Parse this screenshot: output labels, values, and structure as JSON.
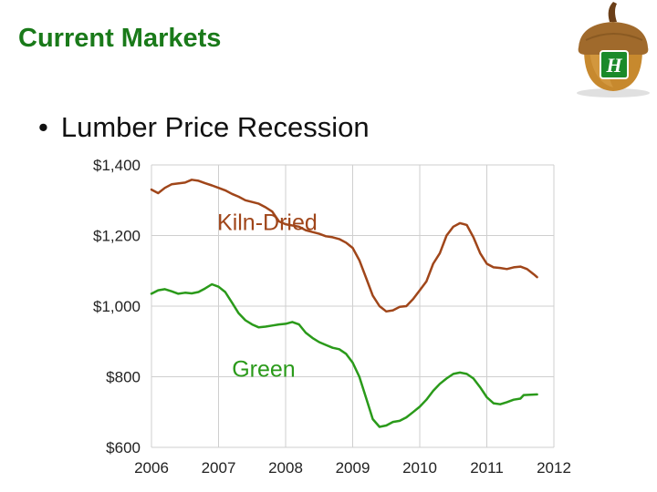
{
  "slide": {
    "title": "Current Markets",
    "bullet": "Lumber Price Recession"
  },
  "logo": {
    "icon": "acorn-logo-icon",
    "letter": "H"
  },
  "colors": {
    "title": "#1a7a1a",
    "kiln_dried": "#a0461a",
    "green": "#2a9a1a",
    "grid": "#cfcfcf"
  },
  "chart_data": {
    "type": "line",
    "title": "",
    "xlabel": "",
    "ylabel": "",
    "xlim": [
      2006,
      2012
    ],
    "ylim": [
      600,
      1400
    ],
    "x_ticks": [
      2006,
      2007,
      2008,
      2009,
      2010,
      2011,
      2012
    ],
    "x_tick_labels": [
      "2006",
      "2007",
      "2008",
      "2009",
      "2010",
      "2011",
      "2012"
    ],
    "y_ticks": [
      600,
      800,
      1000,
      1200,
      1400
    ],
    "y_tick_labels": [
      "$600",
      "$800",
      "$1,000",
      "$1,200",
      "$1,400"
    ],
    "grid": true,
    "legend": "none (series labeled directly on plot)",
    "series": [
      {
        "name": "Kiln-Dried",
        "color": "#a0461a",
        "label_at": [
          2006.98,
          1215
        ],
        "points": [
          [
            2006.0,
            1330
          ],
          [
            2006.1,
            1320
          ],
          [
            2006.2,
            1335
          ],
          [
            2006.3,
            1345
          ],
          [
            2006.5,
            1350
          ],
          [
            2006.6,
            1358
          ],
          [
            2006.7,
            1355
          ],
          [
            2006.8,
            1348
          ],
          [
            2006.9,
            1342
          ],
          [
            2007.0,
            1335
          ],
          [
            2007.1,
            1328
          ],
          [
            2007.2,
            1318
          ],
          [
            2007.3,
            1310
          ],
          [
            2007.4,
            1300
          ],
          [
            2007.5,
            1295
          ],
          [
            2007.6,
            1290
          ],
          [
            2007.7,
            1280
          ],
          [
            2007.8,
            1268
          ],
          [
            2007.9,
            1240
          ],
          [
            2008.0,
            1232
          ],
          [
            2008.2,
            1225
          ],
          [
            2008.3,
            1215
          ],
          [
            2008.5,
            1205
          ],
          [
            2008.6,
            1198
          ],
          [
            2008.7,
            1195
          ],
          [
            2008.8,
            1190
          ],
          [
            2008.9,
            1180
          ],
          [
            2009.0,
            1165
          ],
          [
            2009.1,
            1130
          ],
          [
            2009.2,
            1080
          ],
          [
            2009.3,
            1030
          ],
          [
            2009.4,
            1000
          ],
          [
            2009.5,
            985
          ],
          [
            2009.6,
            988
          ],
          [
            2009.7,
            998
          ],
          [
            2009.8,
            1000
          ],
          [
            2009.9,
            1020
          ],
          [
            2010.0,
            1045
          ],
          [
            2010.1,
            1070
          ],
          [
            2010.2,
            1120
          ],
          [
            2010.3,
            1150
          ],
          [
            2010.4,
            1200
          ],
          [
            2010.5,
            1225
          ],
          [
            2010.6,
            1235
          ],
          [
            2010.7,
            1230
          ],
          [
            2010.8,
            1195
          ],
          [
            2010.9,
            1150
          ],
          [
            2011.0,
            1120
          ],
          [
            2011.1,
            1110
          ],
          [
            2011.2,
            1108
          ],
          [
            2011.3,
            1105
          ],
          [
            2011.4,
            1110
          ],
          [
            2011.5,
            1112
          ],
          [
            2011.6,
            1105
          ],
          [
            2011.7,
            1090
          ],
          [
            2011.75,
            1082
          ]
        ]
      },
      {
        "name": "Green",
        "color": "#2a9a1a",
        "label_at": [
          2007.2,
          800
        ],
        "points": [
          [
            2006.0,
            1035
          ],
          [
            2006.1,
            1045
          ],
          [
            2006.2,
            1048
          ],
          [
            2006.3,
            1042
          ],
          [
            2006.4,
            1035
          ],
          [
            2006.5,
            1038
          ],
          [
            2006.6,
            1036
          ],
          [
            2006.7,
            1040
          ],
          [
            2006.8,
            1050
          ],
          [
            2006.9,
            1062
          ],
          [
            2007.0,
            1055
          ],
          [
            2007.1,
            1040
          ],
          [
            2007.2,
            1010
          ],
          [
            2007.3,
            980
          ],
          [
            2007.4,
            960
          ],
          [
            2007.5,
            948
          ],
          [
            2007.6,
            940
          ],
          [
            2007.7,
            942
          ],
          [
            2007.8,
            945
          ],
          [
            2007.9,
            948
          ],
          [
            2008.0,
            950
          ],
          [
            2008.1,
            955
          ],
          [
            2008.2,
            948
          ],
          [
            2008.3,
            925
          ],
          [
            2008.4,
            910
          ],
          [
            2008.5,
            898
          ],
          [
            2008.6,
            890
          ],
          [
            2008.7,
            882
          ],
          [
            2008.8,
            878
          ],
          [
            2008.9,
            865
          ],
          [
            2009.0,
            840
          ],
          [
            2009.1,
            800
          ],
          [
            2009.2,
            740
          ],
          [
            2009.3,
            680
          ],
          [
            2009.4,
            658
          ],
          [
            2009.5,
            662
          ],
          [
            2009.6,
            672
          ],
          [
            2009.7,
            675
          ],
          [
            2009.8,
            685
          ],
          [
            2009.9,
            700
          ],
          [
            2010.0,
            715
          ],
          [
            2010.1,
            735
          ],
          [
            2010.2,
            760
          ],
          [
            2010.3,
            780
          ],
          [
            2010.4,
            795
          ],
          [
            2010.5,
            808
          ],
          [
            2010.6,
            812
          ],
          [
            2010.7,
            808
          ],
          [
            2010.8,
            795
          ],
          [
            2010.9,
            770
          ],
          [
            2011.0,
            742
          ],
          [
            2011.1,
            725
          ],
          [
            2011.2,
            722
          ],
          [
            2011.3,
            728
          ],
          [
            2011.4,
            735
          ],
          [
            2011.5,
            738
          ],
          [
            2011.55,
            748
          ],
          [
            2011.75,
            750
          ]
        ]
      }
    ]
  }
}
